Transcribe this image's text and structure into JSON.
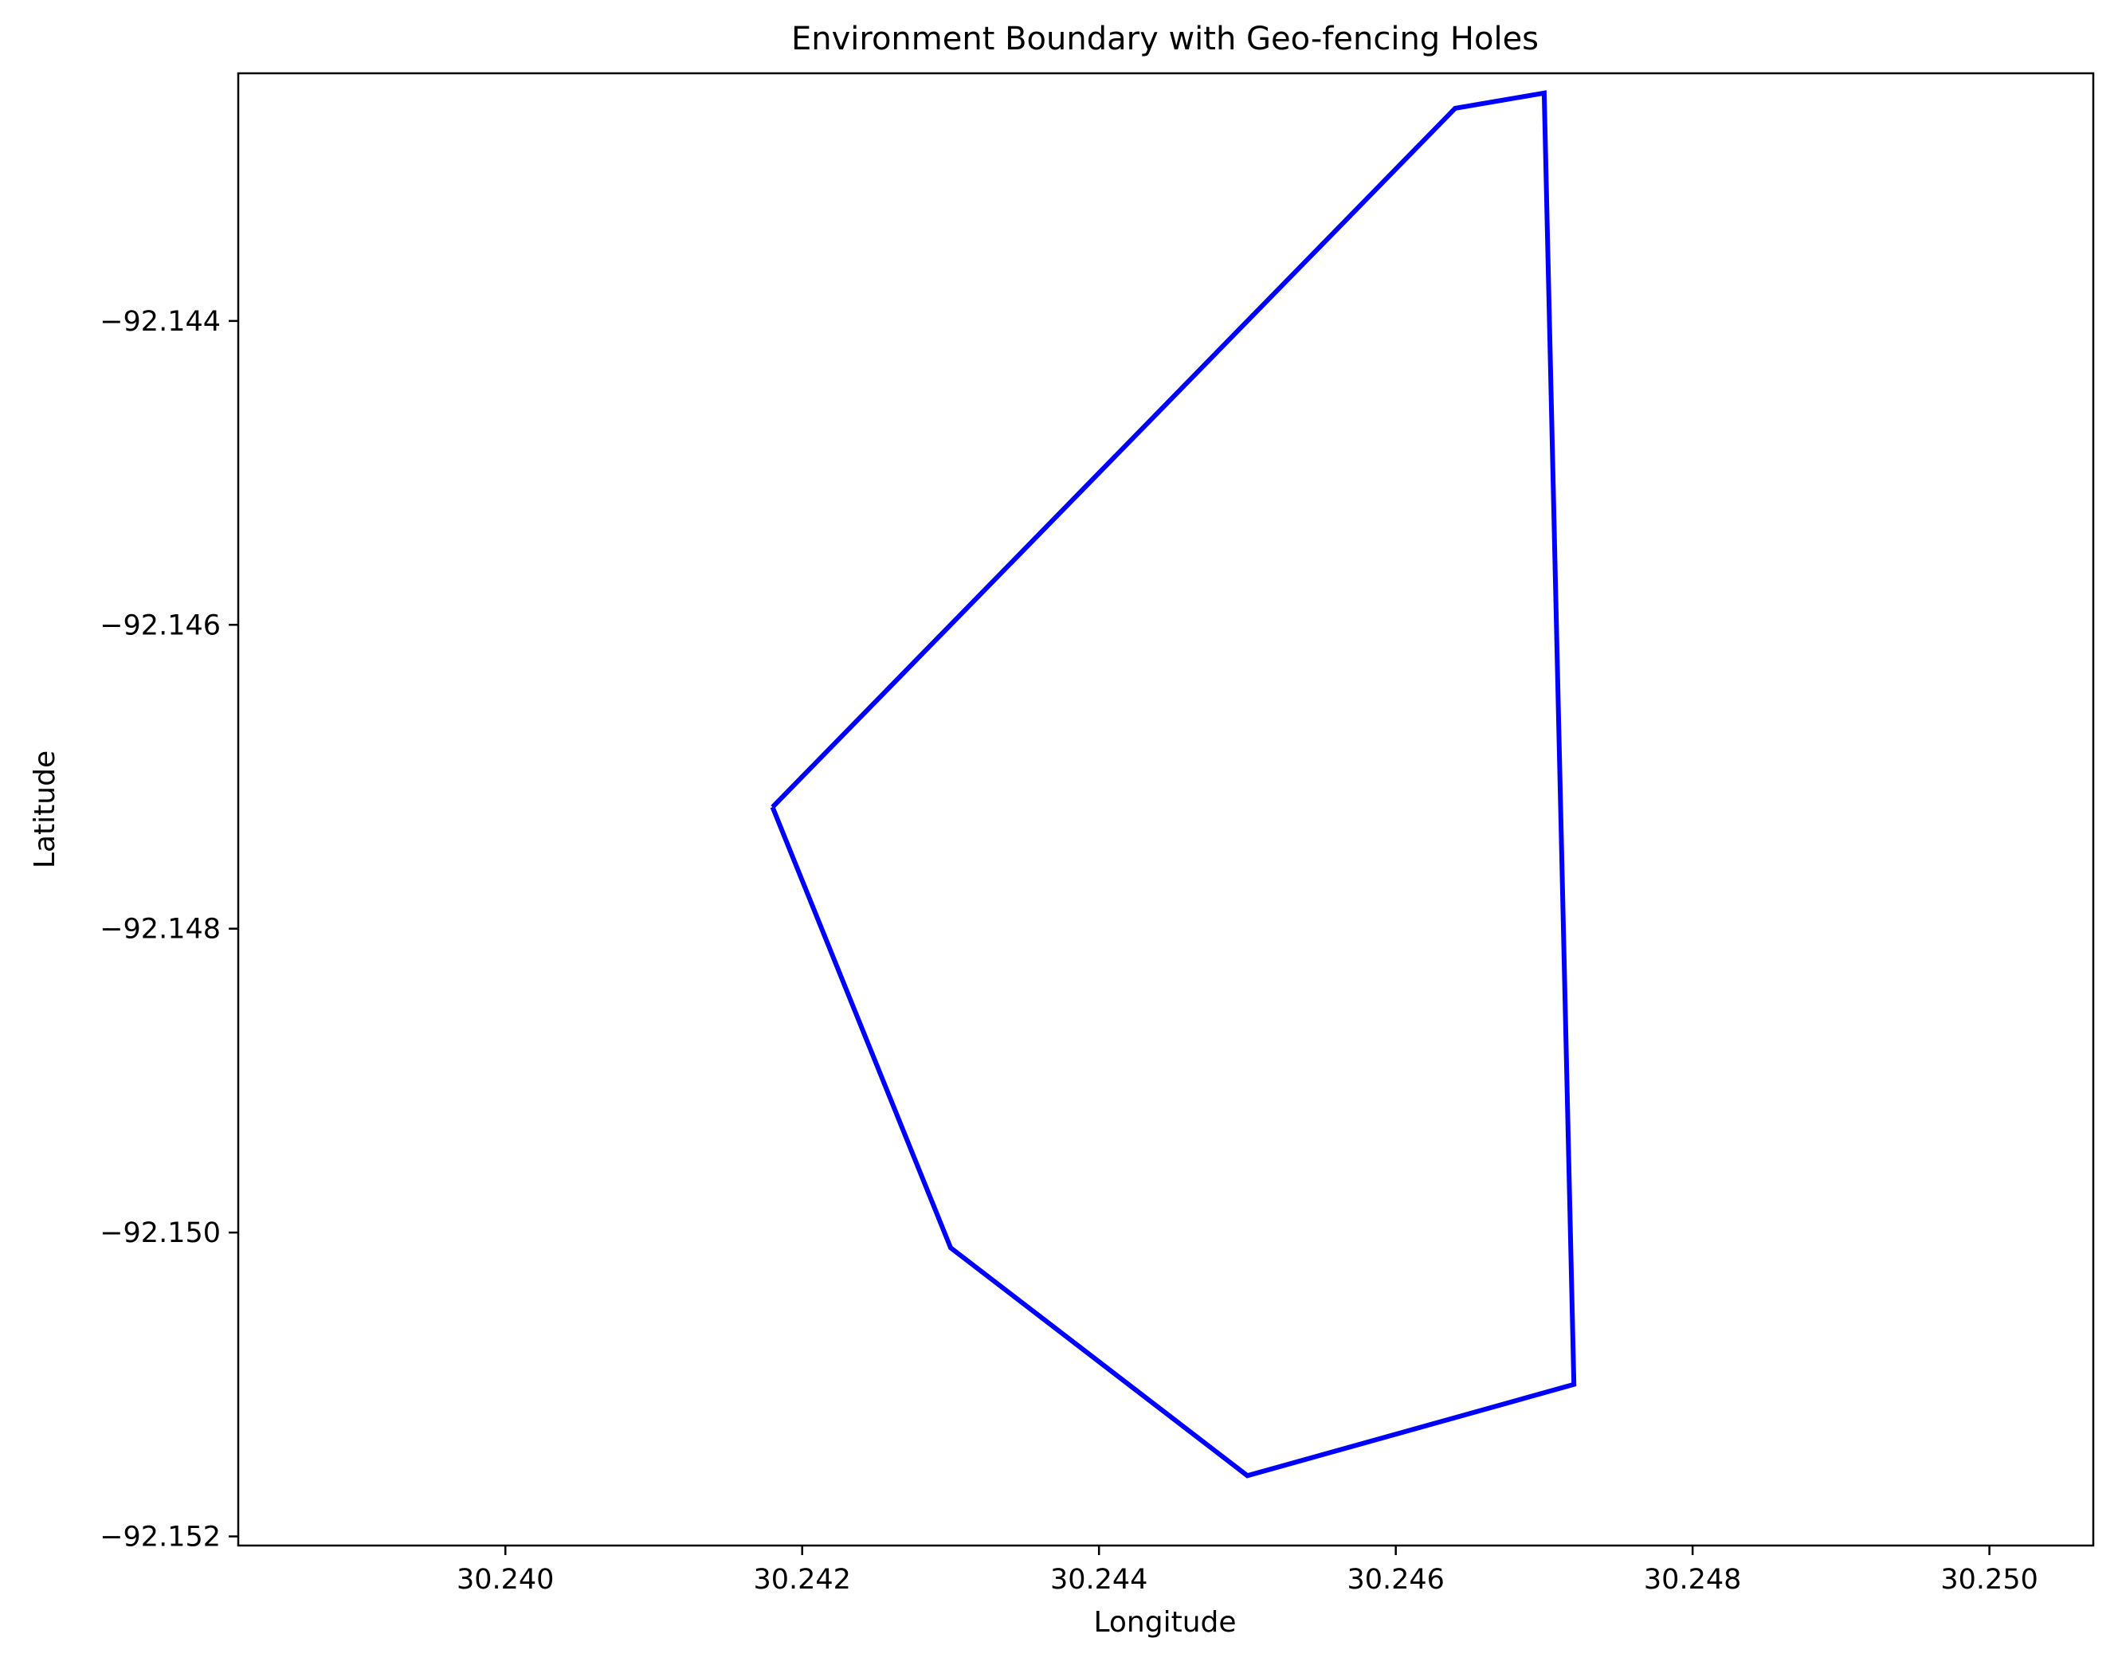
{
  "chart_data": {
    "type": "line",
    "title": "Environment Boundary with Geo-fencing Holes",
    "xlabel": "Longitude",
    "ylabel": "Latitude",
    "xlim": [
      30.2382,
      30.2507
    ],
    "ylim": [
      -92.15206,
      -92.14237
    ],
    "xticks": [
      30.24,
      30.242,
      30.244,
      30.246,
      30.248,
      30.25
    ],
    "xtick_labels": [
      "30.240",
      "30.242",
      "30.244",
      "30.246",
      "30.248",
      "30.250"
    ],
    "yticks": [
      -92.144,
      -92.146,
      -92.148,
      -92.15,
      -92.152
    ],
    "ytick_labels": [
      "−92.144",
      "−92.146",
      "−92.148",
      "−92.150",
      "−92.152"
    ],
    "grid": false,
    "series": [
      {
        "color": "#0000ff",
        "closed": true,
        "points": [
          [
            30.2418,
            -92.1472
          ],
          [
            30.243,
            -92.1501
          ],
          [
            30.245,
            -92.1516
          ],
          [
            30.2472,
            -92.151
          ],
          [
            30.247,
            -92.1425
          ],
          [
            30.2464,
            -92.1426
          ],
          [
            30.2418,
            -92.1472
          ]
        ]
      }
    ]
  }
}
